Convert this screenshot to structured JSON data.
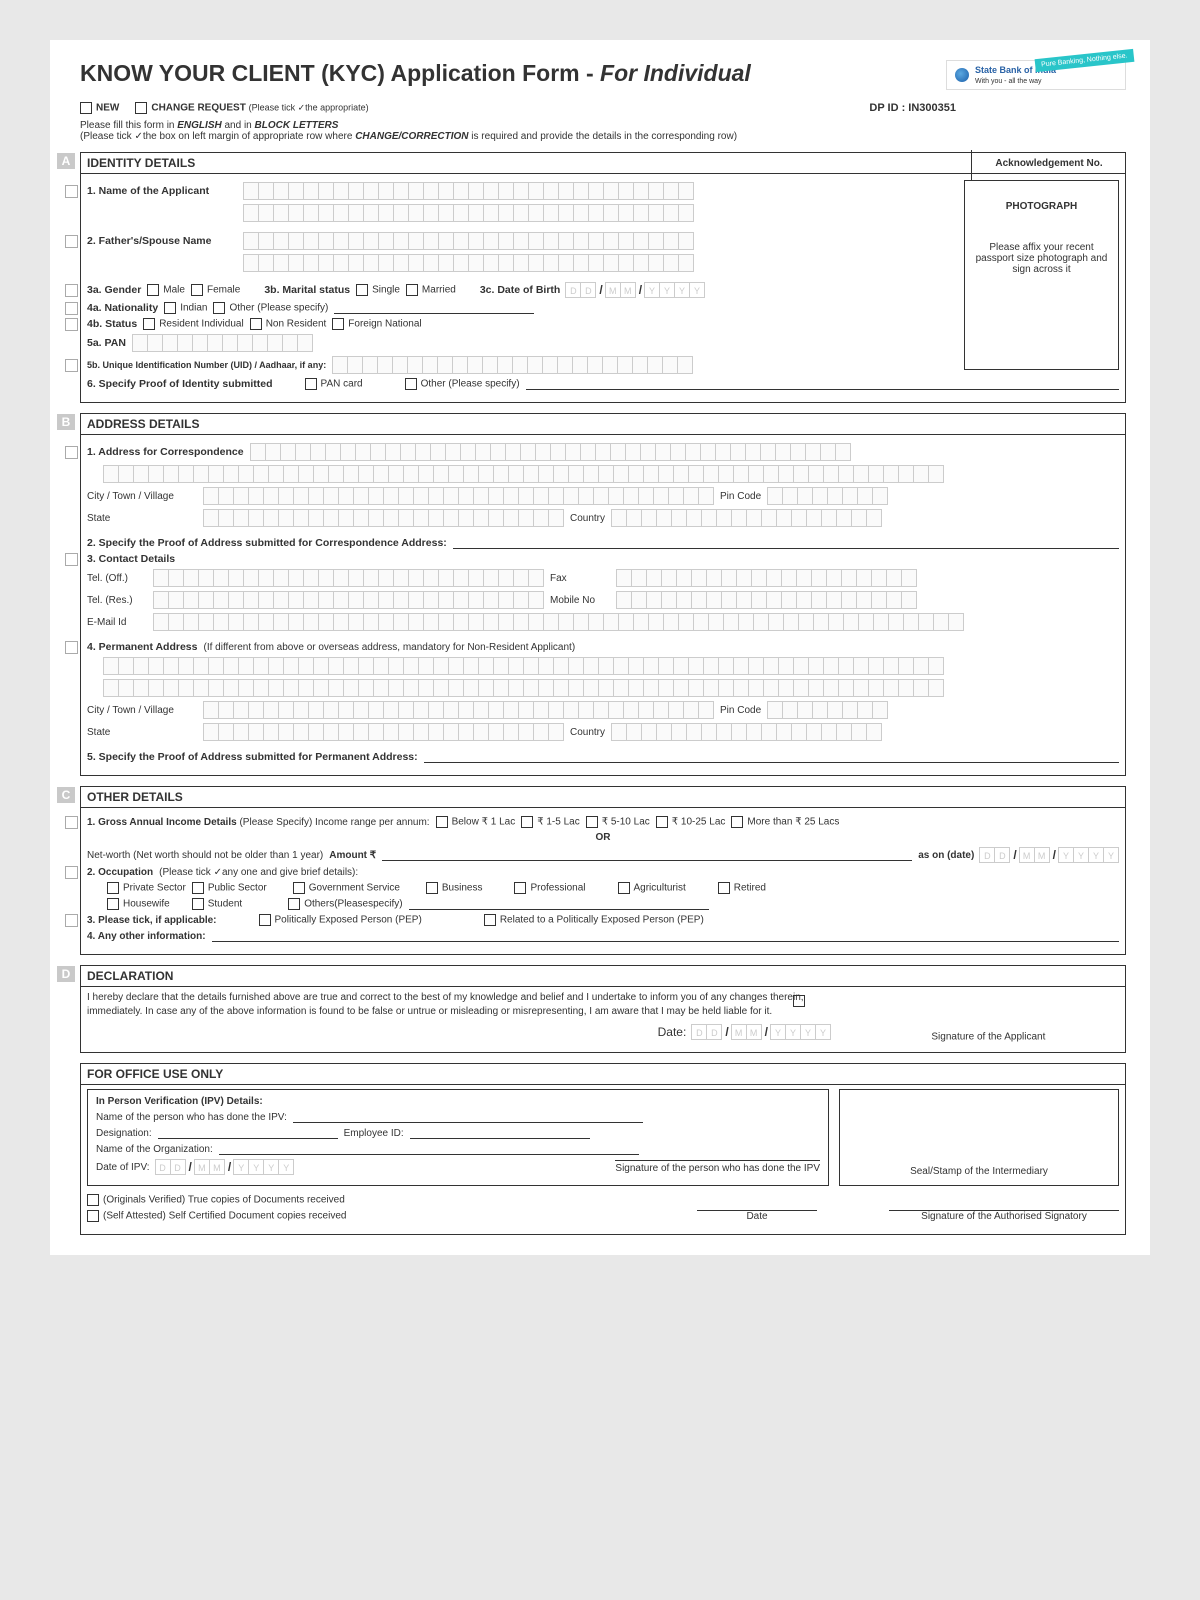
{
  "title_a": "KNOW YOUR CLIENT (KYC) Application Form - ",
  "title_b": "For Individual",
  "logo_bank": "State Bank of India",
  "logo_tag1": "With you - all the way",
  "logo_badge": "Pure Banking, Nothing else.",
  "opt_new": "NEW",
  "opt_change": "CHANGE REQUEST",
  "opt_change_hint": "(Please tick ✓the appropriate)",
  "dpid": "DP ID : IN300351",
  "instr1a": "Please fill this form in ",
  "instr1b": "ENGLISH",
  "instr1c": " and in ",
  "instr1d": "BLOCK LETTERS",
  "instr2a": "(Please tick ✓the box on left margin of appropriate row where ",
  "instr2b": "CHANGE/CORRECTION",
  "instr2c": " is required and provide the details in the corresponding row)",
  "ack": "Acknowledgement No.",
  "letters": {
    "A": "A",
    "B": "B",
    "C": "C",
    "D": "D"
  },
  "A": {
    "header": "IDENTITY DETAILS",
    "q1": "1. Name of the Applicant",
    "q2": "2. Father's/Spouse Name",
    "q3a": "3a. Gender",
    "male": "Male",
    "female": "Female",
    "q3b": "3b. Marital status",
    "single": "Single",
    "married": "Married",
    "q3c": "3c. Date of Birth",
    "q4a": "4a. Nationality",
    "indian": "Indian",
    "other_spec": "Other (Please specify)",
    "q4b": "4b. Status",
    "ri": "Resident Individual",
    "nr": "Non Resident",
    "fn": "Foreign National",
    "q5a": "5a. PAN",
    "q5b": "5b. Unique Identification Number (UID) / Aadhaar, if any:",
    "q6": "6. Specify Proof of Identity submitted",
    "pan_card": "PAN card",
    "other_ps": "Other (Please specify)",
    "photo_t": "PHOTOGRAPH",
    "photo_msg": "Please affix your recent passport size photograph and sign across it"
  },
  "B": {
    "header": "ADDRESS DETAILS",
    "q1": "1. Address for Correspondence",
    "city": "City / Town / Village",
    "pin": "Pin Code",
    "state": "State",
    "country": "Country",
    "q2": "2. Specify the Proof of Address submitted for Correspondence Address:",
    "q3": "3. Contact Details",
    "teloff": "Tel. (Off.)",
    "telres": "Tel. (Res.)",
    "email": "E-Mail Id",
    "fax": "Fax",
    "mobile": "Mobile No",
    "q4a": "4. Permanent Address",
    "q4b": "  (If different from above or overseas address, mandatory for Non-Resident Applicant)",
    "q5": "5. Specify the Proof of Address submitted for Permanent Address:"
  },
  "C": {
    "header": "OTHER DETAILS",
    "q1a": "1. Gross Annual Income Details",
    "q1b": " (Please Specify) Income range per annum:",
    "i1": "Below ₹ 1 Lac",
    "i2": "₹ 1-5 Lac",
    "i3": "₹ 5-10 Lac",
    "i4": "₹ 10-25 Lac",
    "i5": "More than ₹ 25 Lacs",
    "or": "OR",
    "nw1": "Net-worth (Net worth should not be older than 1 year) ",
    "nw2": "Amount ₹",
    "ason": "as on (date)",
    "q2": "2. Occupation",
    "q2hint": " (Please tick ✓any one and give brief details):",
    "o1": "Private Sector",
    "o2": "Public Sector",
    "o3": "Government Service",
    "o4": "Business",
    "o5": "Professional",
    "o6": "Agriculturist",
    "o7": "Retired",
    "o8": "Housewife",
    "o9": "Student",
    "o10": "Others(Pleasespecify)",
    "q3": "3. Please tick, if applicable:",
    "pep": "Politically Exposed Person (PEP)",
    "rpep": "Related to a Politically Exposed Person (PEP)",
    "q4": "4. Any other information:"
  },
  "D": {
    "header": "DECLARATION",
    "text": "I hereby declare that the details furnished above are true and correct to the best of my knowledge and belief and I undertake to inform you of any changes therein, immediately. In case any of the above information is found to be  false or untrue or misleading or misrepresenting, I am aware that I may be held liable for it.",
    "date": "Date:",
    "sig": "Signature of the Applicant"
  },
  "Office": {
    "header": "FOR OFFICE USE ONLY",
    "ipv": "In Person Verification (IPV) Details:",
    "name": "Name of the person who has done the IPV:",
    "desig": "Designation:",
    "empid": "Employee ID:",
    "org": "Name of the Organization:",
    "dipv": "Date of IPV:",
    "sig_ipv": "Signature of the person who has done the IPV",
    "seal": "Seal/Stamp of the Intermediary",
    "orig": "(Originals Verified) True copies of Documents received",
    "self": "(Self Attested) Self Certified Document copies received",
    "date": "Date",
    "sig_auth": "Signature of the Authorised Signatory"
  },
  "dmf": {
    "D": "D",
    "M": "M",
    "Y": "Y"
  }
}
